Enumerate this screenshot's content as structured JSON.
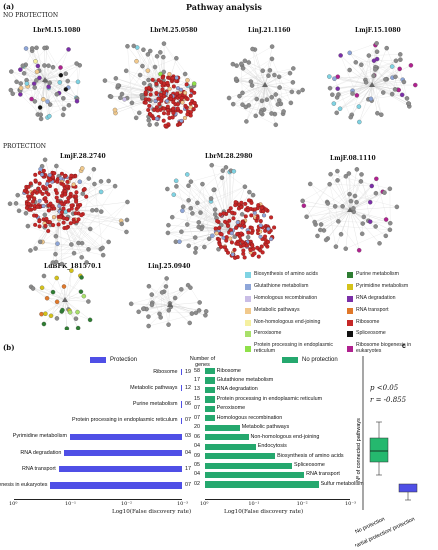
{
  "figure": {
    "panel_a": "(a)",
    "panel_b": "(b)",
    "panel_c": "c",
    "title": "Pathway analysis",
    "no_protection": "NO PROTECTION",
    "protection": "PROTECTION",
    "networks": [
      "LbrM.15.1080",
      "LbrM.25.0580",
      "LinJ.21.1160",
      "LmjF.15.1080",
      "LmjF.28.2740",
      "LbrM.28.2980",
      "LmjF.08.1110",
      "LdBPK_181570.1",
      "LinJ.25.0940"
    ],
    "legend": [
      {
        "label": "Biosynthesis of amino acids",
        "color": "#7fd3e3"
      },
      {
        "label": "Purine metabolism",
        "color": "#2e7d32"
      },
      {
        "label": "Glutathione metabolism",
        "color": "#8ea6d9"
      },
      {
        "label": "Pyrimidine metabolism",
        "color": "#d4c21a"
      },
      {
        "label": "Homologous recombination",
        "color": "#c9bde6"
      },
      {
        "label": "RNA degradation",
        "color": "#7b2fa8"
      },
      {
        "label": "Metabolic pathways",
        "color": "#f1c98c"
      },
      {
        "label": "RNA transport",
        "color": "#e0782a"
      },
      {
        "label": "Non-homologous end-joining",
        "color": "#f5f0a0"
      },
      {
        "label": "Ribosome",
        "color": "#c62828"
      },
      {
        "label": "Peroxisome",
        "color": "#a8e06a"
      },
      {
        "label": "Spliceosome",
        "color": "#111111"
      },
      {
        "label": "Protein processing in endoplasmic reticulum",
        "color": "#8fe04a"
      },
      {
        "label": "Ribosome biogenesis in eukaryotes",
        "color": "#b0218f"
      }
    ]
  },
  "panel_b": {
    "protection_legend": "Protection",
    "no_protection_legend": "No protection",
    "number_of_genes": "Number of genes",
    "xlabel_left": "Log10(False discovery rate)",
    "xlabel_right": "Log10(False discovery rate)",
    "ticks_left": [
      "10⁰",
      "10⁻¹",
      "10⁻²",
      "10⁻³"
    ],
    "ticks_right": [
      "10⁰",
      "10⁻¹",
      "10⁻²",
      "10⁻³"
    ],
    "protection": [
      {
        "label": "Ribosome",
        "genes": "19",
        "value": 0.02
      },
      {
        "label": "Metabolic pathways",
        "genes": "12",
        "value": 0.02
      },
      {
        "label": "Purine metabolism",
        "genes": "06",
        "value": 0.02
      },
      {
        "label": "Protein processing in endoplasmic reticulum",
        "genes": "07",
        "value": 0.02
      },
      {
        "label": "Pyrimidine metabolism",
        "genes": "03",
        "value": 2.0
      },
      {
        "label": "RNA degradation",
        "genes": "04",
        "value": 2.1
      },
      {
        "label": "RNA transport",
        "genes": "17",
        "value": 2.2
      },
      {
        "label": "Ribosome biogenesis in eukaryotes",
        "genes": "07",
        "value": 2.35
      }
    ],
    "no_protection": [
      {
        "label": "Ribosome",
        "genes": "58",
        "value": 0.2
      },
      {
        "label": "Glutathione metabolism",
        "genes": "17",
        "value": 0.2
      },
      {
        "label": "RNA degradation",
        "genes": "13",
        "value": 0.2
      },
      {
        "label": "Protein processing in endoplasmic reticulum",
        "genes": "15",
        "value": 0.2
      },
      {
        "label": "Peroxisome",
        "genes": "07",
        "value": 0.2
      },
      {
        "label": "Homologous recombination",
        "genes": "07",
        "value": 0.2
      },
      {
        "label": "Metabolic pathways",
        "genes": "20",
        "value": 0.72
      },
      {
        "label": "Non-homologous end-joining",
        "genes": "06",
        "value": 0.9
      },
      {
        "label": "Endocytosis",
        "genes": "04",
        "value": 1.05
      },
      {
        "label": "Biosynthesis of amino acids",
        "genes": "09",
        "value": 1.45
      },
      {
        "label": "Spliceosome",
        "genes": "05",
        "value": 1.8
      },
      {
        "label": "RNA transport",
        "genes": "04",
        "value": 2.05
      },
      {
        "label": "Sulfur metabolism",
        "genes": "02",
        "value": 2.35
      }
    ]
  },
  "panel_c": {
    "p_value": "p <0.05",
    "r_value": "r = -0.855",
    "ylabel": "Nº of connected pathways",
    "x_categories": [
      "No protection",
      "Partial protection/ protection"
    ],
    "box_colors": [
      "#25b86e",
      "#4f4fe6"
    ]
  }
}
